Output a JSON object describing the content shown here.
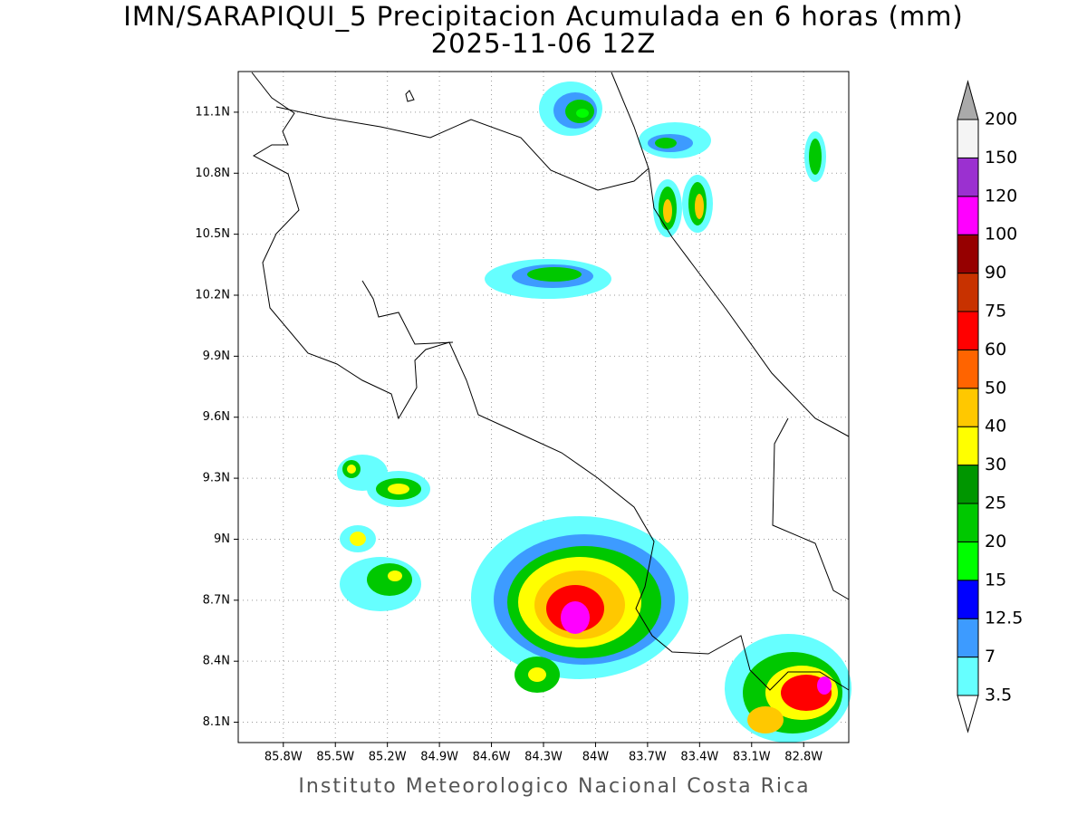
{
  "title": "IMN/SARAPIQUI_5 Precipitacion Acumulada en 6 horas (mm)",
  "subtitle": "2025-11-06 12Z",
  "footer": "Instituto Meteorologico Nacional Costa Rica",
  "map": {
    "xlim": [
      -86.06,
      -82.54
    ],
    "ylim": [
      8.0,
      11.3
    ],
    "grid": true,
    "lon_ticks": [
      {
        "value": -85.8,
        "label": "85.8W"
      },
      {
        "value": -85.5,
        "label": "85.5W"
      },
      {
        "value": -85.2,
        "label": "85.2W"
      },
      {
        "value": -84.9,
        "label": "84.9W"
      },
      {
        "value": -84.6,
        "label": "84.6W"
      },
      {
        "value": -84.3,
        "label": "84.3W"
      },
      {
        "value": -84.0,
        "label": "84W"
      },
      {
        "value": -83.7,
        "label": "83.7W"
      },
      {
        "value": -83.4,
        "label": "83.4W"
      },
      {
        "value": -83.1,
        "label": "83.1W"
      },
      {
        "value": -82.8,
        "label": "82.8W"
      }
    ],
    "lat_ticks": [
      {
        "value": 8.1,
        "label": "8.1N"
      },
      {
        "value": 8.4,
        "label": "8.4N"
      },
      {
        "value": 8.7,
        "label": "8.7N"
      },
      {
        "value": 9.0,
        "label": "9N"
      },
      {
        "value": 9.3,
        "label": "9.3N"
      },
      {
        "value": 9.6,
        "label": "9.6N"
      },
      {
        "value": 9.9,
        "label": "9.9N"
      },
      {
        "value": 10.2,
        "label": "10.2N"
      },
      {
        "value": 10.5,
        "label": "10.5N"
      },
      {
        "value": 10.8,
        "label": "10.8N"
      },
      {
        "value": 11.1,
        "label": "11.1N"
      }
    ]
  },
  "colorbar": {
    "levels": [
      3.5,
      7,
      12.5,
      15,
      20,
      25,
      30,
      40,
      50,
      60,
      75,
      90,
      100,
      120,
      150,
      200
    ],
    "colors": [
      "#ffffff",
      "#66ffff",
      "#3d9bff",
      "#0000ff",
      "#00ff00",
      "#00c800",
      "#009600",
      "#ffff00",
      "#ffc800",
      "#ff6400",
      "#ff0000",
      "#c83200",
      "#960000",
      "#ff00ff",
      "#9b30d0",
      "#f4f4f4",
      "#aaaaaa"
    ]
  }
}
